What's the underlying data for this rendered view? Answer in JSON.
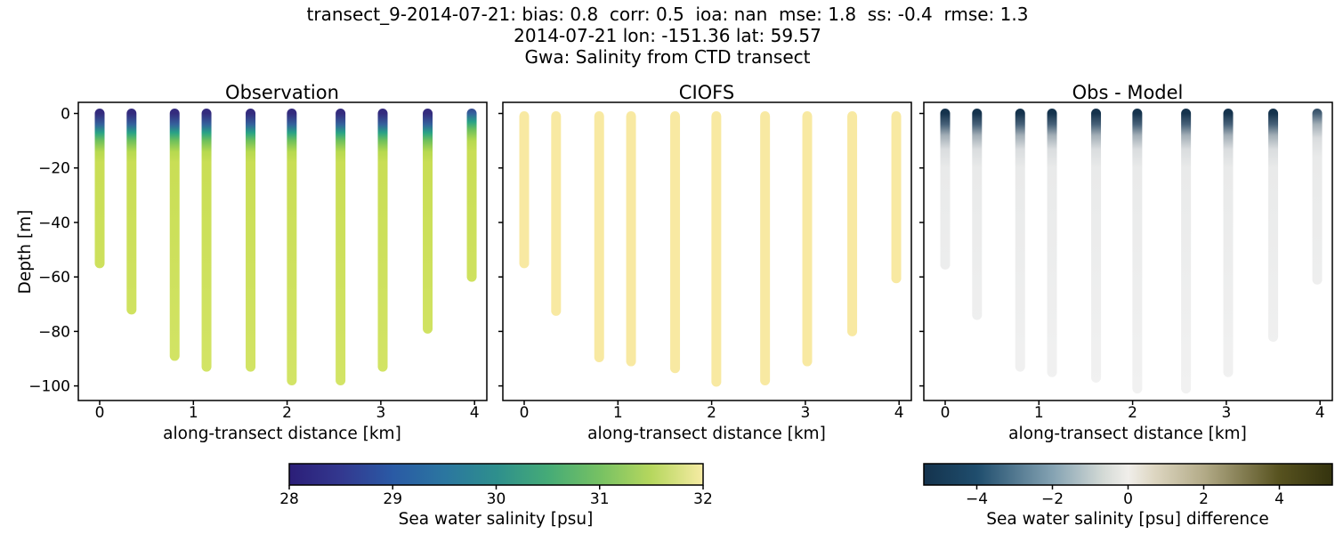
{
  "title": {
    "line1": "transect_9-2014-07-21: bias: 0.8  corr: 0.5  ioa: nan  mse: 1.8  ss: -0.4  rmse: 1.3",
    "line2": "2014-07-21 lon: -151.36 lat: 59.57",
    "line3": "Gwa: Salinity from CTD transect"
  },
  "chart_data": {
    "type": "scatter",
    "xlabel": "along-transect distance [km]",
    "ylabel": "Depth [m]",
    "xtick_labels": [
      "0",
      "1",
      "2",
      "3",
      "4"
    ],
    "xtick_values": [
      0,
      1,
      2,
      3,
      4
    ],
    "ytick_labels": [
      "0",
      "−20",
      "−40",
      "−60",
      "−80",
      "−100"
    ],
    "ytick_values": [
      0,
      -20,
      -40,
      -60,
      -80,
      -100
    ],
    "xlim": [
      -0.23,
      4.13
    ],
    "ylim": [
      4.1,
      -105.5
    ],
    "stations_x_km": [
      0,
      0.34,
      0.8,
      1.14,
      1.61,
      2.05,
      2.57,
      3.02,
      3.5,
      3.97
    ],
    "panels": [
      {
        "title": "Observation",
        "fill": "obs",
        "show_ylabels": true,
        "top_depth_m": [
          0,
          0,
          0,
          0,
          0,
          0,
          0,
          0,
          0,
          0
        ],
        "bottom_depth_m": [
          -55,
          -72,
          -89,
          -93,
          -93,
          -98,
          -98,
          -93,
          -79,
          -60
        ],
        "gradient_shift_m": [
          0,
          0,
          0,
          0,
          0,
          0,
          0,
          0,
          0,
          4
        ],
        "value_profile": "salinity ~28 psu at surface increasing to ~31.3 psu below ~15 m depth"
      },
      {
        "title": "CIOFS",
        "fill": "model",
        "show_ylabels": false,
        "top_depth_m": [
          -1,
          -1,
          -1,
          -1,
          -1,
          -1,
          -1,
          -1,
          -1,
          -1
        ],
        "bottom_depth_m": [
          -55,
          -72.5,
          -89.5,
          -91,
          -93.5,
          -98.5,
          -98,
          -91,
          -80,
          -60.5
        ],
        "gradient_shift_m": [
          0,
          0,
          0,
          0,
          0,
          0,
          0,
          0,
          0,
          0
        ],
        "value_profile": "salinity ~31.9 psu uniform over full depth (pale yellow)"
      },
      {
        "title": "Obs - Model",
        "fill": "diff",
        "show_ylabels": false,
        "top_depth_m": [
          0,
          0,
          0,
          0,
          0,
          0,
          0,
          0,
          0,
          0
        ],
        "bottom_depth_m": [
          -55.5,
          -74,
          -93,
          -95,
          -97,
          -101,
          -101,
          -95,
          -82,
          -61
        ],
        "gradient_shift_m": [
          0,
          0,
          0,
          0,
          0,
          0,
          0,
          0,
          0,
          4
        ],
        "value_profile": "difference ~−4.5 psu at surface rising to ~0 psu below ~15 m depth"
      }
    ],
    "column_gradients": {
      "obs": [
        [
          0,
          "#342b7e"
        ],
        [
          0.04,
          "#34619c"
        ],
        [
          0.07,
          "#27a186"
        ],
        [
          0.1,
          "#6ec05c"
        ],
        [
          0.14,
          "#b6d94f"
        ],
        [
          0.18,
          "#c9de55"
        ],
        [
          1,
          "#d3e466"
        ]
      ],
      "model": [
        [
          0,
          "#f8e9a2"
        ],
        [
          1,
          "#f8e9a2"
        ]
      ],
      "diff": [
        [
          0,
          "#15334d"
        ],
        [
          0.04,
          "#476178"
        ],
        [
          0.08,
          "#a2aeb6"
        ],
        [
          0.13,
          "#d9dcde"
        ],
        [
          0.2,
          "#e9eaea"
        ],
        [
          1,
          "#f1f1f1"
        ]
      ]
    },
    "marker_px": 11
  },
  "colorbars": [
    {
      "label": "Sea water salinity [psu]",
      "tick_labels": [
        "28",
        "29",
        "30",
        "31",
        "32"
      ],
      "tick_values": [
        28,
        29,
        30,
        31,
        32
      ],
      "vmin": 28,
      "vmax": 32,
      "stops": [
        [
          0,
          "#2b1e78"
        ],
        [
          0.125,
          "#33388f"
        ],
        [
          0.25,
          "#2a5aa5"
        ],
        [
          0.375,
          "#2b76a0"
        ],
        [
          0.5,
          "#2e8f8d"
        ],
        [
          0.625,
          "#45ab77"
        ],
        [
          0.75,
          "#76c163"
        ],
        [
          0.875,
          "#b6d75e"
        ],
        [
          1,
          "#f6eba4"
        ]
      ]
    },
    {
      "label": "Sea water salinity [psu] difference",
      "tick_labels": [
        "−4",
        "−2",
        "0",
        "2",
        "4"
      ],
      "tick_values": [
        -4,
        -2,
        0,
        2,
        4
      ],
      "vmin": -5.4,
      "vmax": 5.4,
      "stops": [
        [
          0,
          "#14334d"
        ],
        [
          0.13,
          "#1f4d6d"
        ],
        [
          0.315,
          "#84a2b2"
        ],
        [
          0.44,
          "#d4dad6"
        ],
        [
          0.5,
          "#f0eeea"
        ],
        [
          0.565,
          "#ddd6c1"
        ],
        [
          0.685,
          "#b3ab88"
        ],
        [
          0.87,
          "#57521f"
        ],
        [
          1,
          "#34330e"
        ]
      ]
    }
  ]
}
